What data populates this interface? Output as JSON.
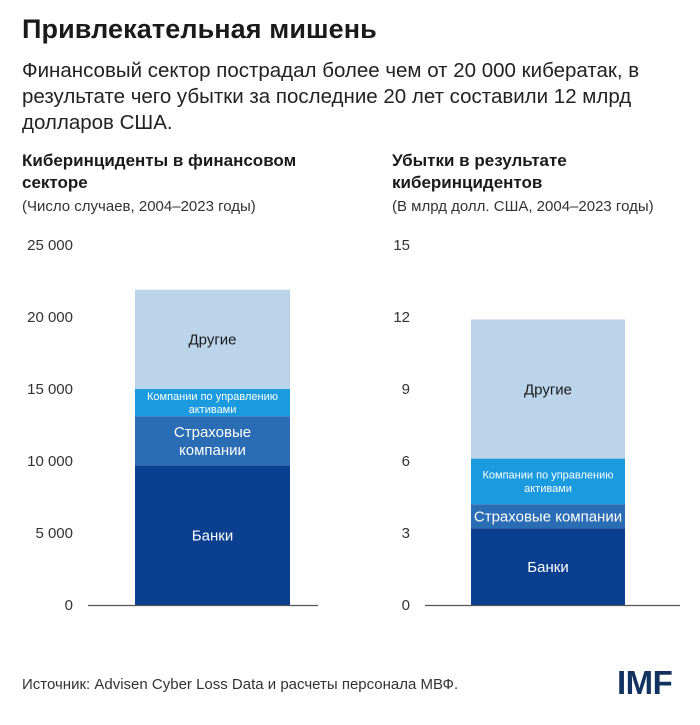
{
  "header": {
    "title": "Привлекательная мишень",
    "subtitle": "Финансовый сектор пострадал более чем от 20 000 кибератак, в результате чего убытки за последние 20 лет составили 12 млрд долларов США."
  },
  "footer": {
    "source": "Источник: Advisen Cyber Loss Data и расчеты персонала МВФ.",
    "logo": "IMF"
  },
  "colors": {
    "banks": "#0b3f8f",
    "insurance": "#2a6db5",
    "asset_mgmt": "#1a9be0",
    "other": "#bcd4ea",
    "axis": "#555555"
  },
  "chart_data": [
    {
      "type": "bar",
      "stacked": true,
      "title": "Киберинциденты в финансовом секторе",
      "subtitle": "(Число случаев, 2004–2023 годы)",
      "ylim": [
        0,
        25000
      ],
      "yticks": [
        0,
        5000,
        10000,
        15000,
        20000,
        25000
      ],
      "ytick_labels": [
        "0",
        "5 000",
        "10 000",
        "15 000",
        "20 000",
        "25 000"
      ],
      "grid": false,
      "series": [
        {
          "name": "Банки",
          "value": 9700,
          "color_key": "banks"
        },
        {
          "name": "Страховые компании",
          "value": 3400,
          "color_key": "insurance"
        },
        {
          "name": "Компании по управлению активами",
          "value": 1900,
          "color_key": "asset_mgmt"
        },
        {
          "name": "Другие",
          "value": 6900,
          "color_key": "other"
        }
      ]
    },
    {
      "type": "bar",
      "stacked": true,
      "title": "Убытки в результате киберинцидентов",
      "subtitle": "(В млрд долл. США, 2004–2023 годы)",
      "ylim": [
        0,
        15
      ],
      "yticks": [
        0,
        3,
        6,
        9,
        12,
        15
      ],
      "ytick_labels": [
        "0",
        "3",
        "6",
        "9",
        "12",
        "15"
      ],
      "grid": false,
      "series": [
        {
          "name": "Банки",
          "value": 3.2,
          "color_key": "banks"
        },
        {
          "name": "Страховые компании",
          "value": 1.0,
          "color_key": "insurance"
        },
        {
          "name": "Компании по управлению активами",
          "value": 1.9,
          "color_key": "asset_mgmt"
        },
        {
          "name": "Другие",
          "value": 5.8,
          "color_key": "other"
        }
      ]
    }
  ]
}
